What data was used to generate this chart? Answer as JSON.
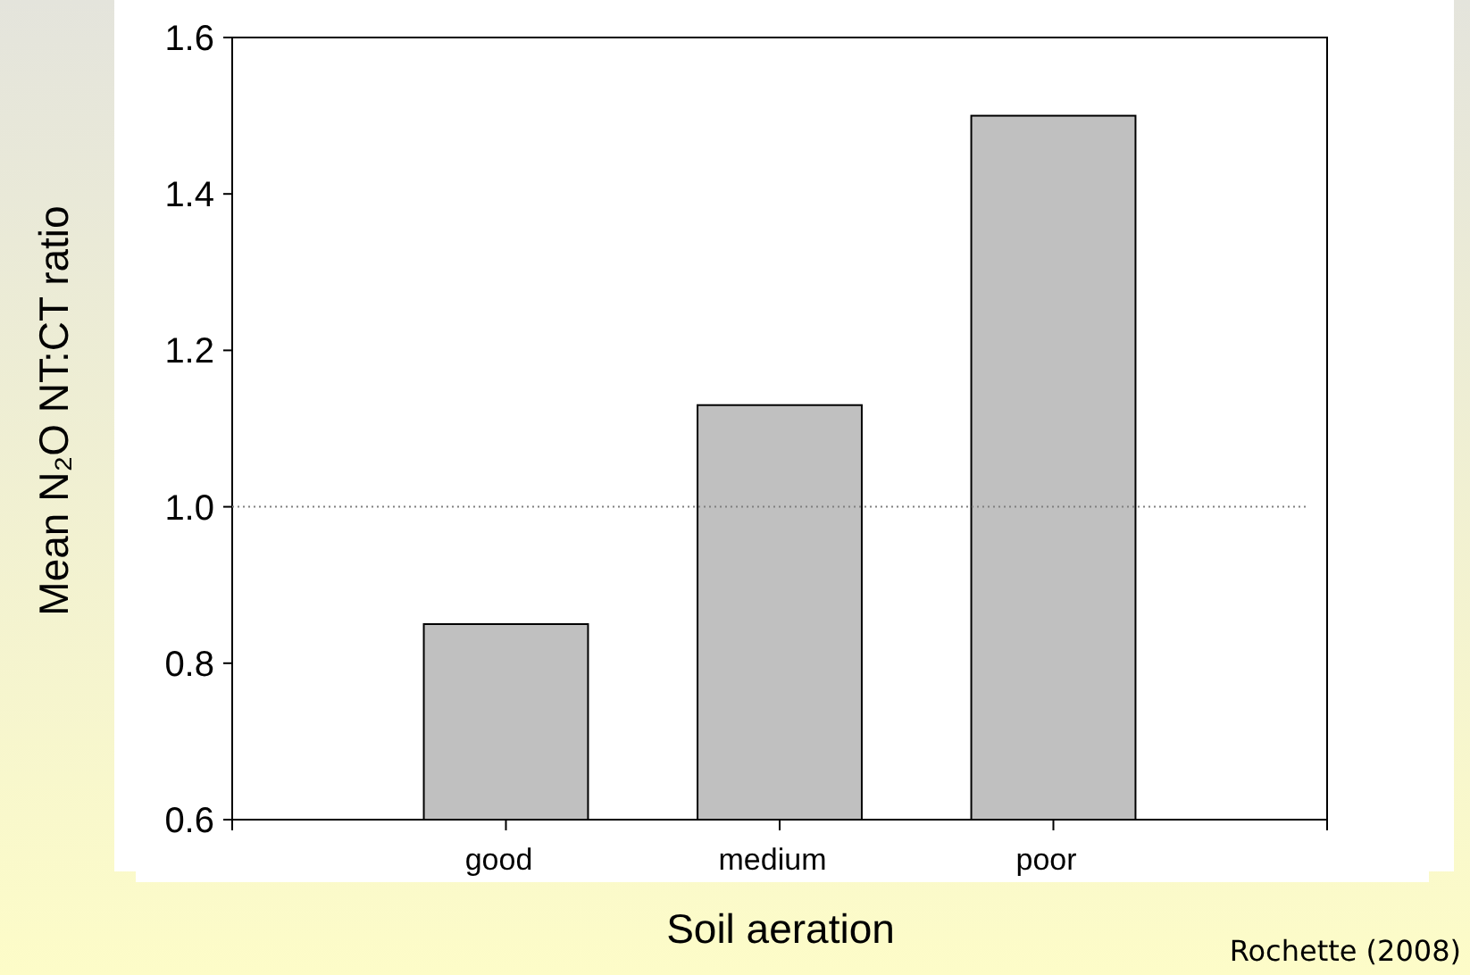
{
  "chart_data": {
    "type": "bar",
    "xlabel": "Soil aeration",
    "ylabel": "Mean N₂O NT:CT ratio",
    "categories": [
      null,
      "good",
      "medium",
      "poor",
      null
    ],
    "values": [
      null,
      0.85,
      1.13,
      1.5,
      null
    ],
    "color": "#c0c0c0",
    "ylim": [
      0.6,
      1.6
    ],
    "yticks": [
      0.6,
      0.8,
      {
        "value": 1,
        "label": "1.0"
      },
      1.2,
      1.4,
      1.6
    ],
    "ref_lines": [
      {
        "axis": "y",
        "value": 1.0,
        "color": "#808080",
        "line_style": "dotted"
      }
    ],
    "annotations": [
      "Rochette (2008)"
    ]
  }
}
